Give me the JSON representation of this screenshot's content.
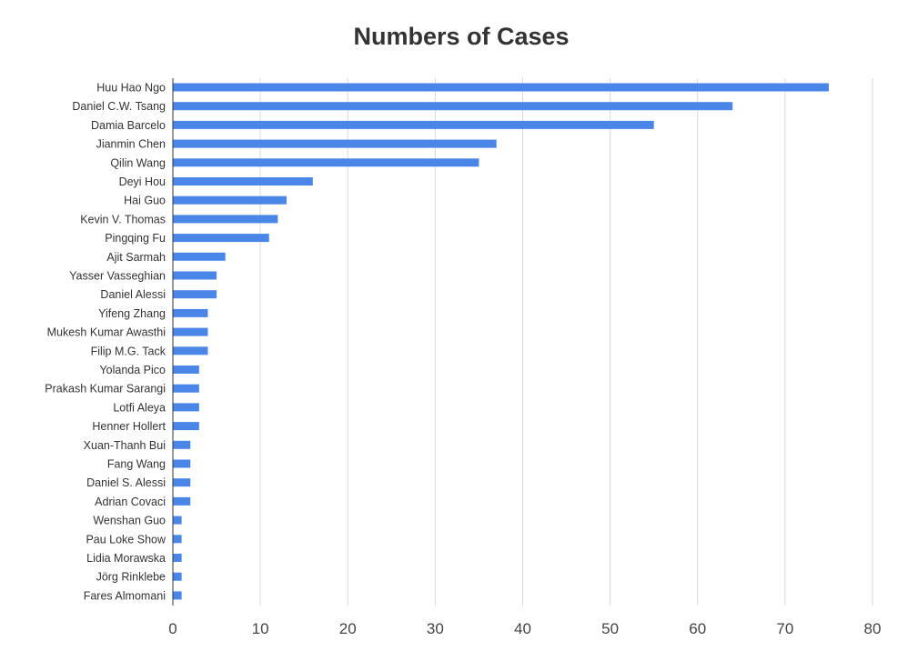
{
  "chart_data": {
    "type": "bar",
    "orientation": "horizontal",
    "title": "Numbers of Cases",
    "xlabel": "",
    "ylabel": "",
    "xlim": [
      0,
      80
    ],
    "x_ticks": [
      0,
      10,
      20,
      30,
      40,
      50,
      60,
      70,
      80
    ],
    "grid": true,
    "legend": "none",
    "bar_color": "#4a86e8",
    "categories": [
      "Huu Hao Ngo",
      "Daniel C.W. Tsang",
      "Damia Barcelo",
      "Jianmin Chen",
      "Qilin Wang",
      "Deyi Hou",
      "Hai Guo",
      "Kevin V. Thomas",
      "Pingqing Fu",
      "Ajit Sarmah",
      "Yasser Vasseghian",
      "Daniel Alessi",
      "Yifeng Zhang",
      "Mukesh Kumar Awasthi",
      "Filip M.G. Tack",
      "Yolanda Pico",
      "Prakash Kumar Sarangi",
      "Lotfi Aleya",
      "Henner Hollert",
      "Xuan-Thanh Bui",
      "Fang Wang",
      "Daniel S. Alessi",
      "Adrian Covaci",
      "Wenshan Guo",
      "Pau Loke Show",
      "Lidia Morawska",
      "Jörg Rinklebe",
      "Fares Almomani"
    ],
    "values": [
      75,
      64,
      55,
      37,
      35,
      16,
      13,
      12,
      11,
      6,
      5,
      5,
      4,
      4,
      4,
      3,
      3,
      3,
      3,
      2,
      2,
      2,
      2,
      1,
      1,
      1,
      1,
      1
    ]
  }
}
